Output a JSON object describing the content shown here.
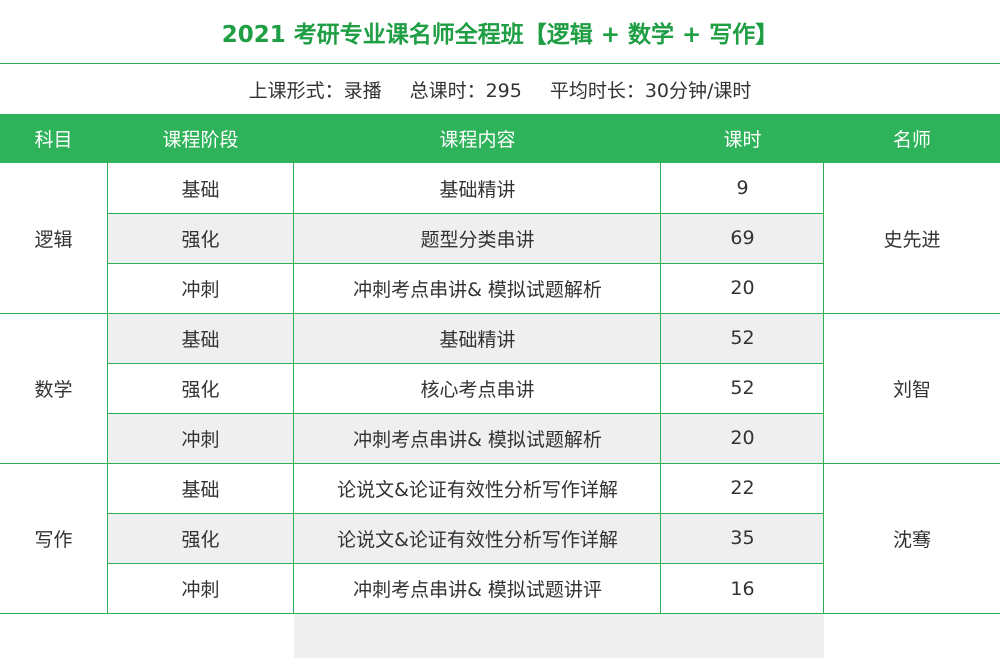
{
  "title": "2021 考研专业课名师全程班【逻辑 + 数学 + 写作】",
  "info": {
    "mode": "上课形式：录播",
    "total_hours": "总课时：295",
    "avg_length": "平均时长：30分钟/课时"
  },
  "columns": [
    "科目",
    "课程阶段",
    "课程内容",
    "课时",
    "名师"
  ],
  "subjects": [
    {
      "name": "逻辑",
      "teacher": "史先进",
      "rows": [
        {
          "stage": "基础",
          "content": "基础精讲",
          "hours": "9"
        },
        {
          "stage": "强化",
          "content": "题型分类串讲",
          "hours": "69"
        },
        {
          "stage": "冲刺",
          "content": "冲刺考点串讲& 模拟试题解析",
          "hours": "20"
        }
      ]
    },
    {
      "name": "数学",
      "teacher": "刘智",
      "rows": [
        {
          "stage": "基础",
          "content": "基础精讲",
          "hours": "52"
        },
        {
          "stage": "强化",
          "content": "核心考点串讲",
          "hours": "52"
        },
        {
          "stage": "冲刺",
          "content": "冲刺考点串讲& 模拟试题解析",
          "hours": "20"
        }
      ]
    },
    {
      "name": "写作",
      "teacher": "沈骞",
      "rows": [
        {
          "stage": "基础",
          "content": "论说文&论证有效性分析写作详解",
          "hours": "22"
        },
        {
          "stage": "强化",
          "content": "论说文&论证有效性分析写作详解",
          "hours": "35"
        },
        {
          "stage": "冲刺",
          "content": "冲刺考点串讲&  模拟试题讲评",
          "hours": "16"
        }
      ]
    }
  ],
  "colors": {
    "accent": "#2fb35a",
    "title": "#1f9e44",
    "shade": "#efefef"
  }
}
